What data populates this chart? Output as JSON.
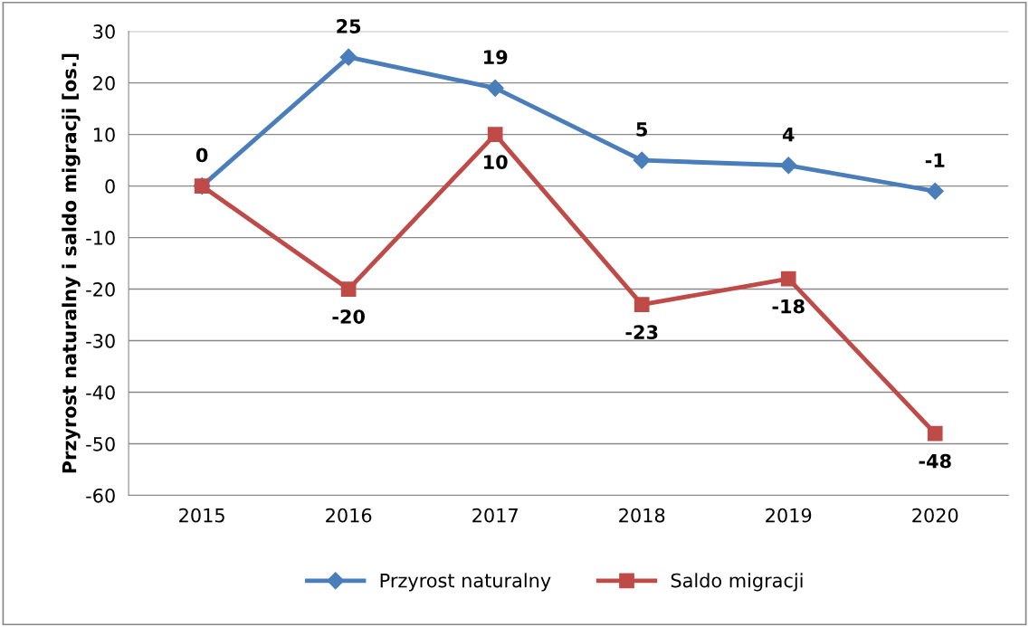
{
  "chart_data": {
    "type": "line",
    "ylabel": "Przyrost naturalny i saldo migracji [os.]",
    "categories": [
      "2015",
      "2016",
      "2017",
      "2018",
      "2019",
      "2020"
    ],
    "series": [
      {
        "name": "Przyrost naturalny",
        "color": "#4a7ebb",
        "marker": "diamond",
        "values": [
          0,
          25,
          19,
          5,
          4,
          -1
        ],
        "value_labels": [
          "0",
          "25",
          "19",
          "5",
          "4",
          "-1"
        ]
      },
      {
        "name": "Saldo migracji",
        "color": "#be4b48",
        "marker": "square",
        "values": [
          0,
          -20,
          10,
          -23,
          -18,
          -48
        ],
        "value_labels": [
          null,
          "-20",
          "10",
          "-23",
          "-18",
          "-48"
        ]
      }
    ],
    "ylim": [
      -60,
      30
    ],
    "yticks": [
      -60,
      -50,
      -40,
      -30,
      -20,
      -10,
      0,
      10,
      20,
      30
    ],
    "grid": "y",
    "legend": "bottom",
    "line_style": "solid"
  }
}
